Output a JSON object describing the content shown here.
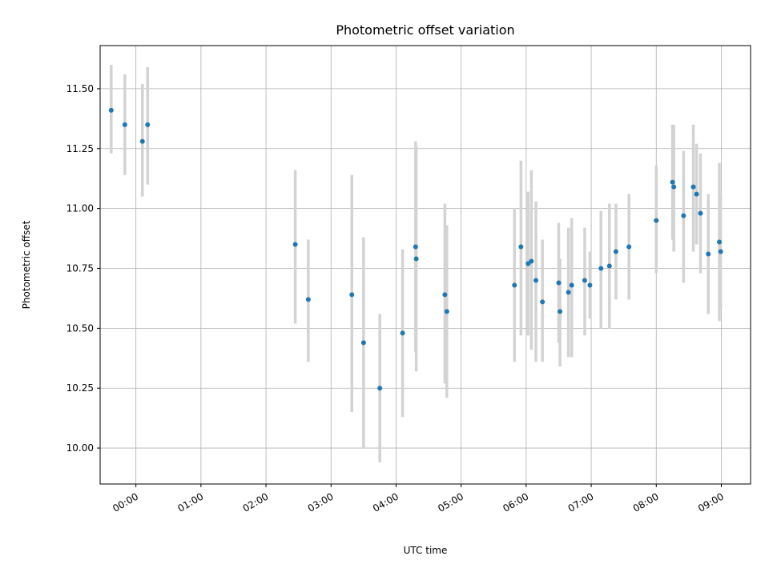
{
  "chart_data": {
    "type": "scatter",
    "title": "Photometric offset variation",
    "xlabel": "UTC time",
    "ylabel": "Photometric offset",
    "x_unit": "hours UTC",
    "xlim": [
      -0.55,
      9.45
    ],
    "ylim": [
      9.85,
      11.68
    ],
    "grid": true,
    "colors": {
      "points": "#1f77b4",
      "error_bars": "#d3d3d3"
    },
    "x_ticks": [
      {
        "value": 0,
        "label": "00:00"
      },
      {
        "value": 1,
        "label": "01:00"
      },
      {
        "value": 2,
        "label": "02:00"
      },
      {
        "value": 3,
        "label": "03:00"
      },
      {
        "value": 4,
        "label": "04:00"
      },
      {
        "value": 5,
        "label": "05:00"
      },
      {
        "value": 6,
        "label": "06:00"
      },
      {
        "value": 7,
        "label": "07:00"
      },
      {
        "value": 8,
        "label": "08:00"
      },
      {
        "value": 9,
        "label": "09:00"
      }
    ],
    "y_ticks": [
      {
        "value": 10.0,
        "label": "10.00"
      },
      {
        "value": 10.25,
        "label": "10.25"
      },
      {
        "value": 10.5,
        "label": "10.50"
      },
      {
        "value": 10.75,
        "label": "10.75"
      },
      {
        "value": 11.0,
        "label": "11.00"
      },
      {
        "value": 11.25,
        "label": "11.25"
      },
      {
        "value": 11.5,
        "label": "11.50"
      }
    ],
    "points": [
      {
        "x": -0.38,
        "y": 11.41,
        "lo": 11.23,
        "hi": 11.6
      },
      {
        "x": -0.17,
        "y": 11.35,
        "lo": 11.14,
        "hi": 11.56
      },
      {
        "x": 0.1,
        "y": 11.28,
        "lo": 11.05,
        "hi": 11.52
      },
      {
        "x": 0.18,
        "y": 11.35,
        "lo": 11.1,
        "hi": 11.59
      },
      {
        "x": 2.45,
        "y": 10.85,
        "lo": 10.52,
        "hi": 11.16
      },
      {
        "x": 2.65,
        "y": 10.62,
        "lo": 10.36,
        "hi": 10.87
      },
      {
        "x": 3.32,
        "y": 10.64,
        "lo": 10.15,
        "hi": 11.14
      },
      {
        "x": 3.5,
        "y": 10.44,
        "lo": 10.0,
        "hi": 10.88
      },
      {
        "x": 3.75,
        "y": 10.25,
        "lo": 9.94,
        "hi": 10.56
      },
      {
        "x": 4.1,
        "y": 10.48,
        "lo": 10.13,
        "hi": 10.83
      },
      {
        "x": 4.3,
        "y": 10.84,
        "lo": 10.4,
        "hi": 11.28
      },
      {
        "x": 4.31,
        "y": 10.79,
        "lo": 10.32,
        "hi": 11.26
      },
      {
        "x": 4.75,
        "y": 10.64,
        "lo": 10.27,
        "hi": 11.02
      },
      {
        "x": 4.78,
        "y": 10.57,
        "lo": 10.21,
        "hi": 10.93
      },
      {
        "x": 5.82,
        "y": 10.68,
        "lo": 10.36,
        "hi": 11.0
      },
      {
        "x": 5.92,
        "y": 10.84,
        "lo": 10.47,
        "hi": 11.2
      },
      {
        "x": 6.03,
        "y": 10.77,
        "lo": 10.47,
        "hi": 11.07
      },
      {
        "x": 6.08,
        "y": 10.78,
        "lo": 10.41,
        "hi": 11.16
      },
      {
        "x": 6.15,
        "y": 10.7,
        "lo": 10.36,
        "hi": 11.03
      },
      {
        "x": 6.25,
        "y": 10.61,
        "lo": 10.36,
        "hi": 10.87
      },
      {
        "x": 6.5,
        "y": 10.69,
        "lo": 10.44,
        "hi": 10.94
      },
      {
        "x": 6.52,
        "y": 10.57,
        "lo": 10.34,
        "hi": 10.79
      },
      {
        "x": 6.65,
        "y": 10.65,
        "lo": 10.38,
        "hi": 10.92
      },
      {
        "x": 6.7,
        "y": 10.68,
        "lo": 10.38,
        "hi": 10.96
      },
      {
        "x": 6.9,
        "y": 10.7,
        "lo": 10.47,
        "hi": 10.92
      },
      {
        "x": 6.98,
        "y": 10.68,
        "lo": 10.54,
        "hi": 10.82
      },
      {
        "x": 7.15,
        "y": 10.75,
        "lo": 10.5,
        "hi": 10.99
      },
      {
        "x": 7.28,
        "y": 10.76,
        "lo": 10.5,
        "hi": 11.02
      },
      {
        "x": 7.38,
        "y": 10.82,
        "lo": 10.62,
        "hi": 11.02
      },
      {
        "x": 7.58,
        "y": 10.84,
        "lo": 10.62,
        "hi": 11.06
      },
      {
        "x": 8.0,
        "y": 10.95,
        "lo": 10.73,
        "hi": 11.18
      },
      {
        "x": 8.25,
        "y": 11.11,
        "lo": 10.87,
        "hi": 11.35
      },
      {
        "x": 8.27,
        "y": 11.09,
        "lo": 10.82,
        "hi": 11.35
      },
      {
        "x": 8.42,
        "y": 10.97,
        "lo": 10.69,
        "hi": 11.24
      },
      {
        "x": 8.57,
        "y": 11.09,
        "lo": 10.82,
        "hi": 11.35
      },
      {
        "x": 8.62,
        "y": 11.06,
        "lo": 10.85,
        "hi": 11.27
      },
      {
        "x": 8.68,
        "y": 10.98,
        "lo": 10.73,
        "hi": 11.23
      },
      {
        "x": 8.8,
        "y": 10.81,
        "lo": 10.56,
        "hi": 11.06
      },
      {
        "x": 8.97,
        "y": 10.86,
        "lo": 10.53,
        "hi": 11.19
      },
      {
        "x": 8.99,
        "y": 10.82,
        "lo": 10.58,
        "hi": 11.06
      }
    ]
  }
}
